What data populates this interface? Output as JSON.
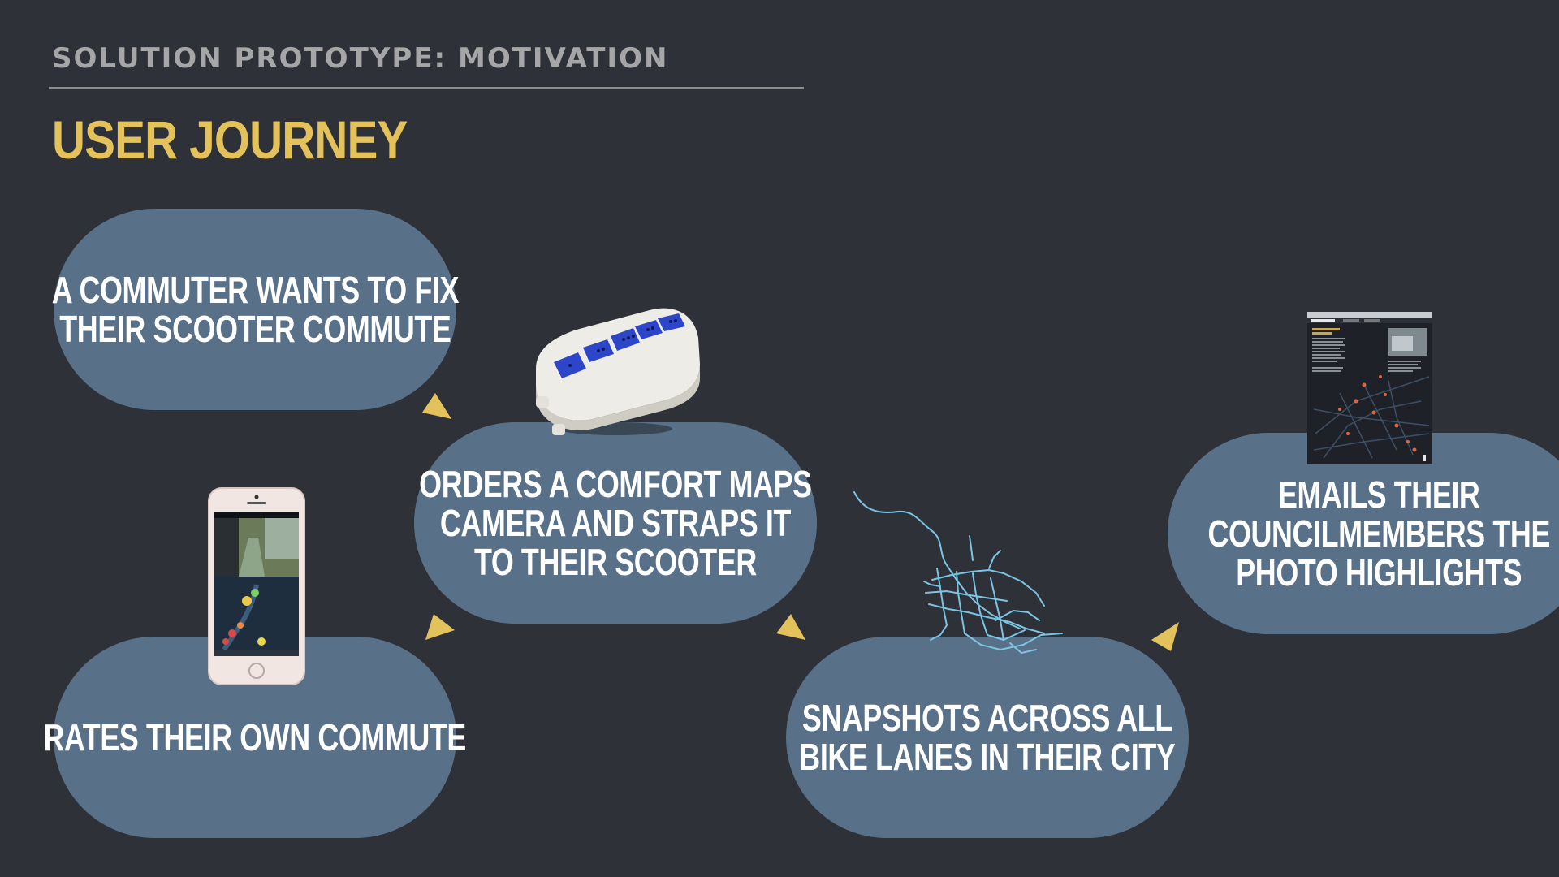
{
  "header": {
    "section": "SOLUTION PROTOTYPE: MOTIVATION",
    "title": "USER JOURNEY"
  },
  "colors": {
    "background": "#2e3138",
    "accent": "#e3c25c",
    "pill": "#587189",
    "route": "#7cc4e4"
  },
  "steps": [
    {
      "lines": [
        "A COMMUTER WANTS TO FIX",
        "THEIR SCOOTER COMMUTE"
      ]
    },
    {
      "lines": [
        "ORDERS A COMFORT MAPS",
        "CAMERA AND STRAPS IT",
        "TO THEIR SCOOTER"
      ]
    },
    {
      "lines": [
        "RATES THEIR OWN COMMUTE"
      ]
    },
    {
      "lines": [
        "SNAPSHOTS ACROSS ALL",
        "BIKE LANES IN THEIR CITY"
      ]
    },
    {
      "lines": [
        "EMAILS THEIR",
        "COUNCILMEMBERS THE",
        "PHOTO HIGHLIGHTS"
      ]
    }
  ],
  "images": {
    "camera": "camera-device-image",
    "phone": "phone-app-image",
    "map": "bike-lane-map-image",
    "report": "report-screenshot-image"
  }
}
